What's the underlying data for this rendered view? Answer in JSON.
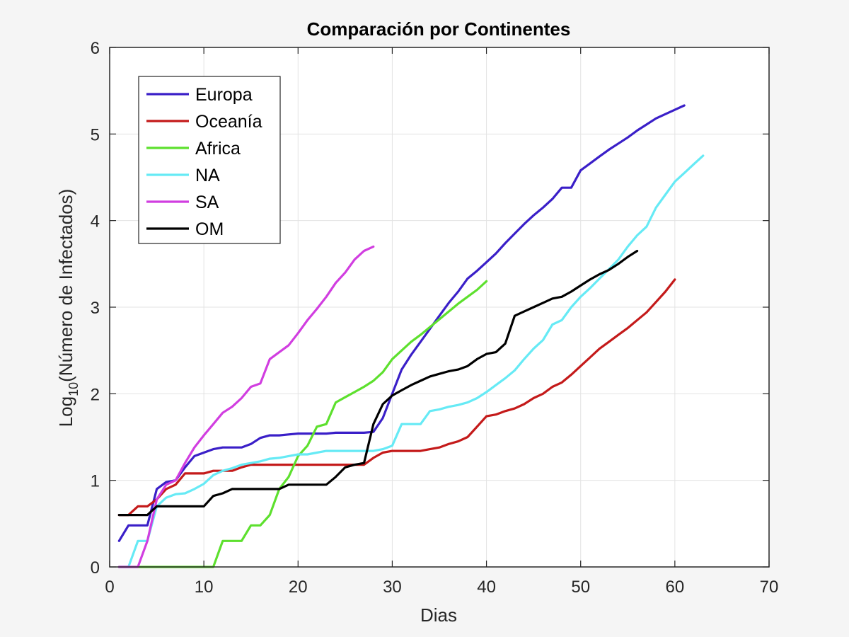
{
  "chart_data": {
    "type": "line",
    "title": "Comparación por Continentes",
    "xlabel": "Dias",
    "ylabel_prefix": "Log",
    "ylabel_subscript": "10",
    "ylabel_suffix": "(Número de Infectados)",
    "xlim": [
      0,
      70
    ],
    "ylim": [
      0,
      6
    ],
    "xticks": [
      0,
      10,
      20,
      30,
      40,
      50,
      60,
      70
    ],
    "yticks": [
      0,
      1,
      2,
      3,
      4,
      5,
      6
    ],
    "xtick_labels": [
      "0",
      "10",
      "20",
      "30",
      "40",
      "50",
      "60",
      "70"
    ],
    "ytick_labels": [
      "0",
      "1",
      "2",
      "3",
      "4",
      "5",
      "6"
    ],
    "grid": true,
    "legend_position": "top-left",
    "series": [
      {
        "name": "Europa",
        "color": "#3a1fc8",
        "points": [
          [
            1,
            0.3
          ],
          [
            2,
            0.48
          ],
          [
            3,
            0.48
          ],
          [
            4,
            0.48
          ],
          [
            5,
            0.9
          ],
          [
            6,
            0.98
          ],
          [
            7,
            1.0
          ],
          [
            8,
            1.15
          ],
          [
            9,
            1.28
          ],
          [
            10,
            1.32
          ],
          [
            11,
            1.36
          ],
          [
            12,
            1.38
          ],
          [
            13,
            1.38
          ],
          [
            14,
            1.38
          ],
          [
            15,
            1.42
          ],
          [
            16,
            1.49
          ],
          [
            17,
            1.52
          ],
          [
            18,
            1.52
          ],
          [
            19,
            1.53
          ],
          [
            20,
            1.54
          ],
          [
            21,
            1.54
          ],
          [
            22,
            1.54
          ],
          [
            23,
            1.54
          ],
          [
            24,
            1.55
          ],
          [
            25,
            1.55
          ],
          [
            26,
            1.55
          ],
          [
            27,
            1.55
          ],
          [
            28,
            1.56
          ],
          [
            29,
            1.72
          ],
          [
            30,
            2.0
          ],
          [
            31,
            2.28
          ],
          [
            32,
            2.45
          ],
          [
            33,
            2.6
          ],
          [
            34,
            2.75
          ],
          [
            35,
            2.9
          ],
          [
            36,
            3.05
          ],
          [
            37,
            3.18
          ],
          [
            38,
            3.33
          ],
          [
            39,
            3.42
          ],
          [
            40,
            3.52
          ],
          [
            41,
            3.62
          ],
          [
            42,
            3.74
          ],
          [
            43,
            3.85
          ],
          [
            44,
            3.96
          ],
          [
            45,
            4.06
          ],
          [
            46,
            4.15
          ],
          [
            47,
            4.25
          ],
          [
            48,
            4.38
          ],
          [
            49,
            4.38
          ],
          [
            50,
            4.58
          ],
          [
            51,
            4.66
          ],
          [
            52,
            4.74
          ],
          [
            53,
            4.82
          ],
          [
            54,
            4.89
          ],
          [
            55,
            4.96
          ],
          [
            56,
            5.04
          ],
          [
            57,
            5.11
          ],
          [
            58,
            5.18
          ],
          [
            59,
            5.23
          ],
          [
            60,
            5.28
          ],
          [
            61,
            5.33
          ]
        ]
      },
      {
        "name": "Oceanía",
        "color": "#c41a1a",
        "points": [
          [
            1,
            0.6
          ],
          [
            2,
            0.6
          ],
          [
            3,
            0.7
          ],
          [
            4,
            0.7
          ],
          [
            5,
            0.78
          ],
          [
            6,
            0.9
          ],
          [
            7,
            0.95
          ],
          [
            8,
            1.08
          ],
          [
            9,
            1.08
          ],
          [
            10,
            1.08
          ],
          [
            11,
            1.11
          ],
          [
            12,
            1.11
          ],
          [
            13,
            1.11
          ],
          [
            14,
            1.15
          ],
          [
            15,
            1.18
          ],
          [
            16,
            1.18
          ],
          [
            17,
            1.18
          ],
          [
            18,
            1.18
          ],
          [
            19,
            1.18
          ],
          [
            20,
            1.18
          ],
          [
            21,
            1.18
          ],
          [
            22,
            1.18
          ],
          [
            23,
            1.18
          ],
          [
            24,
            1.18
          ],
          [
            25,
            1.18
          ],
          [
            26,
            1.18
          ],
          [
            27,
            1.18
          ],
          [
            28,
            1.26
          ],
          [
            29,
            1.32
          ],
          [
            30,
            1.34
          ],
          [
            31,
            1.34
          ],
          [
            32,
            1.34
          ],
          [
            33,
            1.34
          ],
          [
            34,
            1.36
          ],
          [
            35,
            1.38
          ],
          [
            36,
            1.42
          ],
          [
            37,
            1.45
          ],
          [
            38,
            1.5
          ],
          [
            39,
            1.62
          ],
          [
            40,
            1.74
          ],
          [
            41,
            1.76
          ],
          [
            42,
            1.8
          ],
          [
            43,
            1.83
          ],
          [
            44,
            1.88
          ],
          [
            45,
            1.95
          ],
          [
            46,
            2.0
          ],
          [
            47,
            2.08
          ],
          [
            48,
            2.13
          ],
          [
            49,
            2.22
          ],
          [
            50,
            2.32
          ],
          [
            51,
            2.42
          ],
          [
            52,
            2.52
          ],
          [
            53,
            2.6
          ],
          [
            54,
            2.68
          ],
          [
            55,
            2.76
          ],
          [
            56,
            2.85
          ],
          [
            57,
            2.94
          ],
          [
            58,
            3.06
          ],
          [
            59,
            3.18
          ],
          [
            60,
            3.32
          ]
        ]
      },
      {
        "name": "Africa",
        "color": "#5de02e",
        "points": [
          [
            1,
            0
          ],
          [
            2,
            0
          ],
          [
            3,
            0
          ],
          [
            4,
            0
          ],
          [
            5,
            0
          ],
          [
            6,
            0
          ],
          [
            7,
            0
          ],
          [
            8,
            0
          ],
          [
            9,
            0
          ],
          [
            10,
            0
          ],
          [
            11,
            0
          ],
          [
            12,
            0.3
          ],
          [
            13,
            0.3
          ],
          [
            14,
            0.3
          ],
          [
            15,
            0.48
          ],
          [
            16,
            0.48
          ],
          [
            17,
            0.6
          ],
          [
            18,
            0.9
          ],
          [
            19,
            1.04
          ],
          [
            20,
            1.28
          ],
          [
            21,
            1.4
          ],
          [
            22,
            1.62
          ],
          [
            23,
            1.65
          ],
          [
            24,
            1.9
          ],
          [
            25,
            1.96
          ],
          [
            26,
            2.02
          ],
          [
            27,
            2.08
          ],
          [
            28,
            2.15
          ],
          [
            29,
            2.25
          ],
          [
            30,
            2.4
          ],
          [
            31,
            2.5
          ],
          [
            32,
            2.6
          ],
          [
            33,
            2.68
          ],
          [
            34,
            2.77
          ],
          [
            35,
            2.86
          ],
          [
            36,
            2.95
          ],
          [
            37,
            3.04
          ],
          [
            38,
            3.12
          ],
          [
            39,
            3.2
          ],
          [
            40,
            3.3
          ]
        ]
      },
      {
        "name": "NA",
        "color": "#66eaf5",
        "points": [
          [
            1,
            0
          ],
          [
            2,
            0
          ],
          [
            3,
            0.3
          ],
          [
            4,
            0.3
          ],
          [
            5,
            0.7
          ],
          [
            6,
            0.8
          ],
          [
            7,
            0.84
          ],
          [
            8,
            0.85
          ],
          [
            9,
            0.9
          ],
          [
            10,
            0.96
          ],
          [
            11,
            1.06
          ],
          [
            12,
            1.11
          ],
          [
            13,
            1.14
          ],
          [
            14,
            1.18
          ],
          [
            15,
            1.2
          ],
          [
            16,
            1.22
          ],
          [
            17,
            1.25
          ],
          [
            18,
            1.26
          ],
          [
            19,
            1.28
          ],
          [
            20,
            1.3
          ],
          [
            21,
            1.3
          ],
          [
            22,
            1.32
          ],
          [
            23,
            1.34
          ],
          [
            24,
            1.34
          ],
          [
            25,
            1.34
          ],
          [
            26,
            1.34
          ],
          [
            27,
            1.34
          ],
          [
            28,
            1.34
          ],
          [
            29,
            1.36
          ],
          [
            30,
            1.4
          ],
          [
            31,
            1.65
          ],
          [
            32,
            1.65
          ],
          [
            33,
            1.65
          ],
          [
            34,
            1.8
          ],
          [
            35,
            1.82
          ],
          [
            36,
            1.85
          ],
          [
            37,
            1.87
          ],
          [
            38,
            1.9
          ],
          [
            39,
            1.95
          ],
          [
            40,
            2.02
          ],
          [
            41,
            2.1
          ],
          [
            42,
            2.18
          ],
          [
            43,
            2.27
          ],
          [
            44,
            2.4
          ],
          [
            45,
            2.52
          ],
          [
            46,
            2.62
          ],
          [
            47,
            2.8
          ],
          [
            48,
            2.85
          ],
          [
            49,
            3.0
          ],
          [
            50,
            3.12
          ],
          [
            51,
            3.22
          ],
          [
            52,
            3.33
          ],
          [
            53,
            3.44
          ],
          [
            54,
            3.55
          ],
          [
            55,
            3.7
          ],
          [
            56,
            3.83
          ],
          [
            57,
            3.93
          ],
          [
            58,
            4.15
          ],
          [
            59,
            4.3
          ],
          [
            60,
            4.45
          ],
          [
            61,
            4.55
          ],
          [
            62,
            4.65
          ],
          [
            63,
            4.75
          ]
        ]
      },
      {
        "name": "SA",
        "color": "#d13ee0",
        "points": [
          [
            1,
            0
          ],
          [
            2,
            0
          ],
          [
            3,
            0
          ],
          [
            4,
            0.3
          ],
          [
            5,
            0.78
          ],
          [
            6,
            0.95
          ],
          [
            7,
            1.0
          ],
          [
            8,
            1.2
          ],
          [
            9,
            1.38
          ],
          [
            10,
            1.52
          ],
          [
            11,
            1.65
          ],
          [
            12,
            1.78
          ],
          [
            13,
            1.85
          ],
          [
            14,
            1.95
          ],
          [
            15,
            2.08
          ],
          [
            16,
            2.12
          ],
          [
            17,
            2.4
          ],
          [
            18,
            2.48
          ],
          [
            19,
            2.56
          ],
          [
            20,
            2.7
          ],
          [
            21,
            2.85
          ],
          [
            22,
            2.98
          ],
          [
            23,
            3.12
          ],
          [
            24,
            3.28
          ],
          [
            25,
            3.4
          ],
          [
            26,
            3.55
          ],
          [
            27,
            3.65
          ],
          [
            28,
            3.7
          ]
        ]
      },
      {
        "name": "OM",
        "color": "#000000",
        "points": [
          [
            1,
            0.6
          ],
          [
            2,
            0.6
          ],
          [
            3,
            0.6
          ],
          [
            4,
            0.6
          ],
          [
            5,
            0.7
          ],
          [
            6,
            0.7
          ],
          [
            7,
            0.7
          ],
          [
            8,
            0.7
          ],
          [
            9,
            0.7
          ],
          [
            10,
            0.7
          ],
          [
            11,
            0.82
          ],
          [
            12,
            0.85
          ],
          [
            13,
            0.9
          ],
          [
            14,
            0.9
          ],
          [
            15,
            0.9
          ],
          [
            16,
            0.9
          ],
          [
            17,
            0.9
          ],
          [
            18,
            0.9
          ],
          [
            19,
            0.95
          ],
          [
            20,
            0.95
          ],
          [
            21,
            0.95
          ],
          [
            22,
            0.95
          ],
          [
            23,
            0.95
          ],
          [
            24,
            1.04
          ],
          [
            25,
            1.15
          ],
          [
            26,
            1.18
          ],
          [
            27,
            1.2
          ],
          [
            28,
            1.65
          ],
          [
            29,
            1.88
          ],
          [
            30,
            1.98
          ],
          [
            31,
            2.04
          ],
          [
            32,
            2.1
          ],
          [
            33,
            2.15
          ],
          [
            34,
            2.2
          ],
          [
            35,
            2.23
          ],
          [
            36,
            2.26
          ],
          [
            37,
            2.28
          ],
          [
            38,
            2.32
          ],
          [
            39,
            2.4
          ],
          [
            40,
            2.46
          ],
          [
            41,
            2.48
          ],
          [
            42,
            2.58
          ],
          [
            43,
            2.9
          ],
          [
            44,
            2.95
          ],
          [
            45,
            3.0
          ],
          [
            46,
            3.05
          ],
          [
            47,
            3.1
          ],
          [
            48,
            3.12
          ],
          [
            49,
            3.18
          ],
          [
            50,
            3.25
          ],
          [
            51,
            3.32
          ],
          [
            52,
            3.38
          ],
          [
            53,
            3.43
          ],
          [
            54,
            3.5
          ],
          [
            55,
            3.58
          ],
          [
            56,
            3.65
          ]
        ]
      }
    ]
  }
}
